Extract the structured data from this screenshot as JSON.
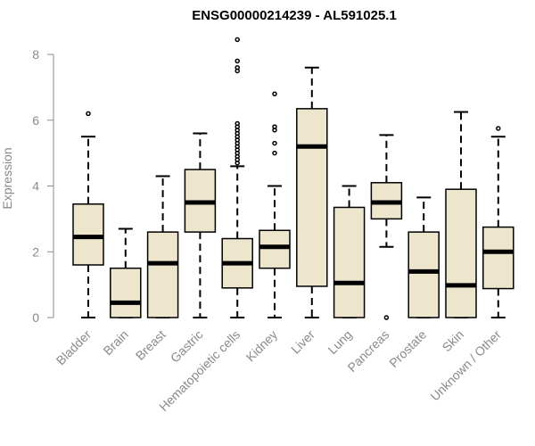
{
  "chart_data": {
    "type": "boxplot",
    "title": "ENSG00000214239 - AL591025.1",
    "xlabel": "",
    "ylabel": "Expression",
    "ylim": [
      0,
      8.5
    ],
    "yticks": [
      0,
      2,
      4,
      6,
      8
    ],
    "box_fill": "#ede6cd",
    "categories": [
      "Bladder",
      "Brain",
      "Breast",
      "Gastric",
      "Hematopoietic cells",
      "Kidney",
      "Liver",
      "Lung",
      "Pancreas",
      "Prostate",
      "Skin",
      "Unknown / Other"
    ],
    "boxes": [
      {
        "name": "Bladder",
        "whisker_low": 0,
        "q1": 1.6,
        "median": 2.45,
        "q3": 3.45,
        "whisker_high": 5.5,
        "outliers": [
          6.2
        ]
      },
      {
        "name": "Brain",
        "whisker_low": 0,
        "q1": 0,
        "median": 0.45,
        "q3": 1.5,
        "whisker_high": 2.7,
        "outliers": []
      },
      {
        "name": "Breast",
        "whisker_low": 0,
        "q1": 0,
        "median": 1.65,
        "q3": 2.6,
        "whisker_high": 4.3,
        "outliers": []
      },
      {
        "name": "Gastric",
        "whisker_low": 0,
        "q1": 2.6,
        "median": 3.5,
        "q3": 4.5,
        "whisker_high": 5.6,
        "outliers": []
      },
      {
        "name": "Hematopoietic cells",
        "whisker_low": 0,
        "q1": 0.9,
        "median": 1.65,
        "q3": 2.4,
        "whisker_high": 4.6,
        "outliers": [
          4.7,
          4.8,
          4.9,
          5.0,
          5.1,
          5.2,
          5.3,
          5.4,
          5.5,
          5.6,
          5.7,
          5.8,
          5.9,
          7.5,
          7.6,
          7.8,
          8.45
        ]
      },
      {
        "name": "Kidney",
        "whisker_low": 0,
        "q1": 1.5,
        "median": 2.15,
        "q3": 2.65,
        "whisker_high": 4.0,
        "outliers": [
          5.0,
          5.3,
          5.7,
          5.8,
          6.8
        ]
      },
      {
        "name": "Liver",
        "whisker_low": 0,
        "q1": 0.95,
        "median": 5.2,
        "q3": 6.35,
        "whisker_high": 7.6,
        "outliers": []
      },
      {
        "name": "Lung",
        "whisker_low": 0,
        "q1": 0,
        "median": 1.05,
        "q3": 3.35,
        "whisker_high": 4.0,
        "outliers": []
      },
      {
        "name": "Pancreas",
        "whisker_low": 2.15,
        "q1": 3.0,
        "median": 3.5,
        "q3": 4.1,
        "whisker_high": 5.55,
        "outliers": [
          0
        ]
      },
      {
        "name": "Prostate",
        "whisker_low": 0,
        "q1": 0,
        "median": 1.4,
        "q3": 2.6,
        "whisker_high": 3.65,
        "outliers": []
      },
      {
        "name": "Skin",
        "whisker_low": 0,
        "q1": 0,
        "median": 0.98,
        "q3": 3.9,
        "whisker_high": 6.25,
        "outliers": []
      },
      {
        "name": "Unknown / Other",
        "whisker_low": 0,
        "q1": 0.88,
        "median": 2.0,
        "q3": 2.75,
        "whisker_high": 5.5,
        "outliers": [
          5.75
        ]
      }
    ]
  }
}
